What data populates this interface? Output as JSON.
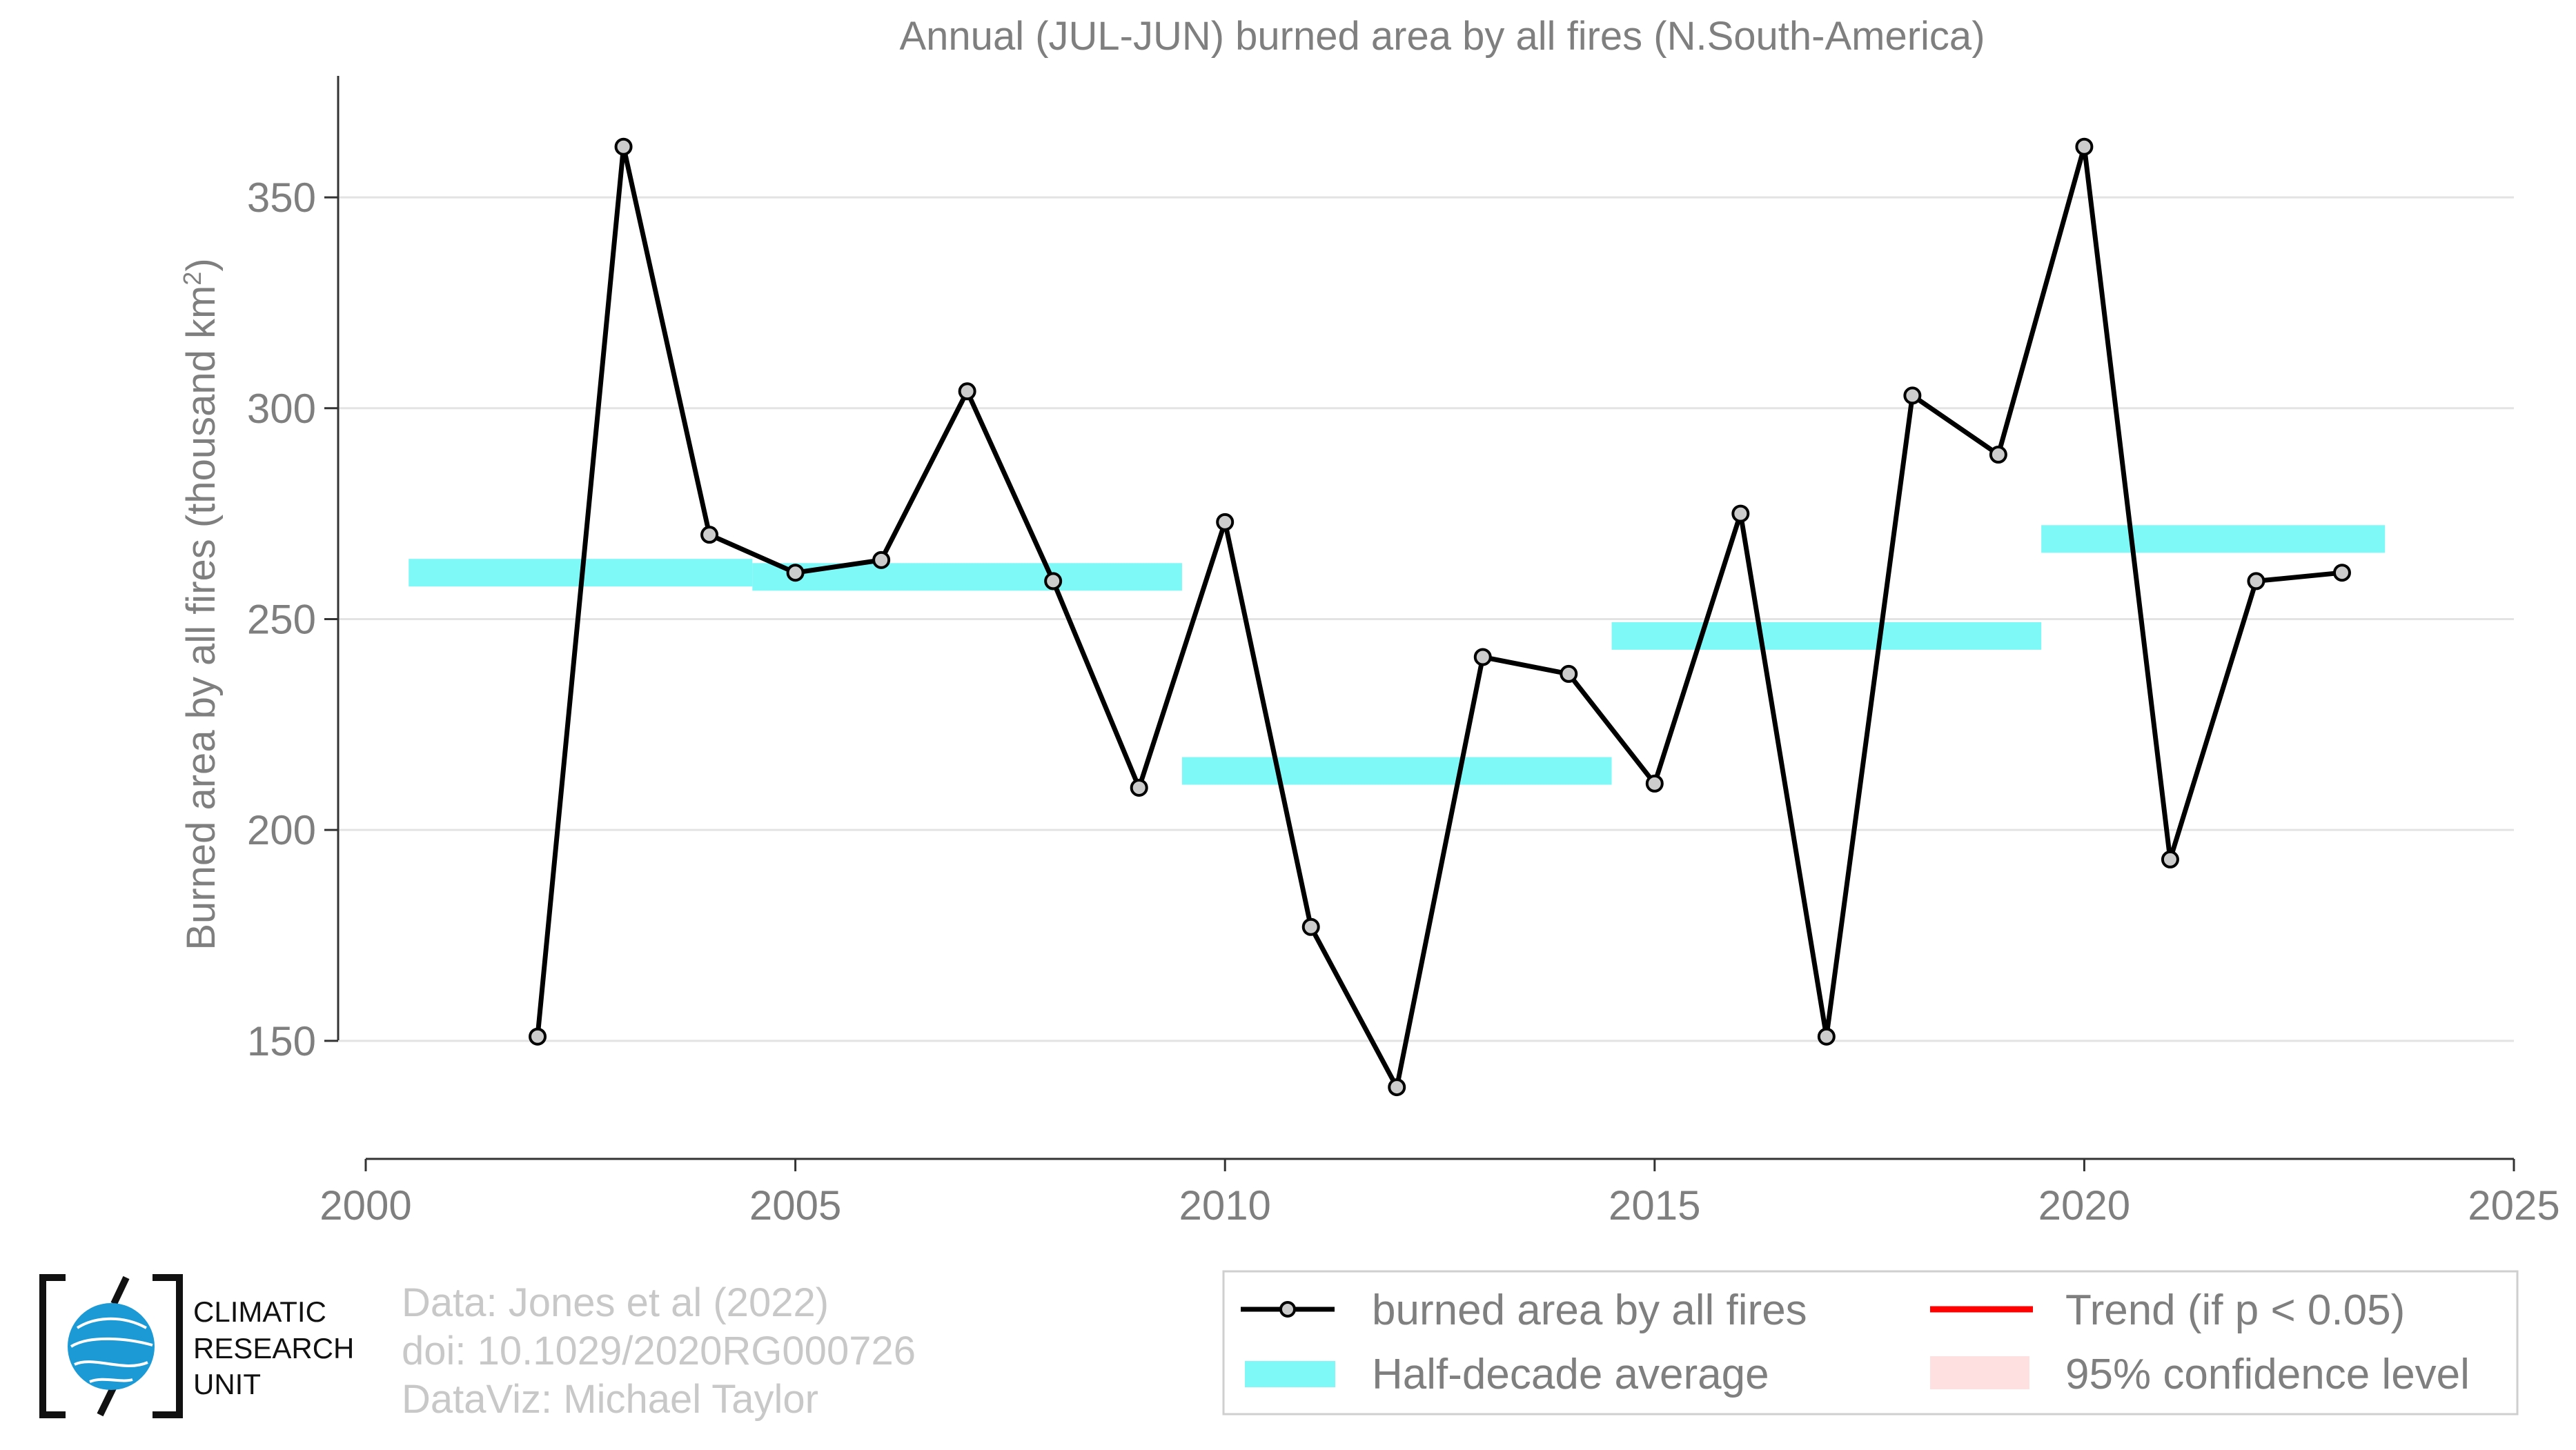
{
  "chart_data": {
    "type": "line",
    "title": "Annual (JUL-JUN) burned area by all fires (N.South-America)",
    "ylabel": "Burned area by all fires (thousand km²)",
    "xlabel": "",
    "xlim": [
      2000,
      2025
    ],
    "ylim": [
      122,
      377
    ],
    "x_ticks": [
      "2000",
      "2005",
      "2010",
      "2015",
      "2020",
      "2025"
    ],
    "y_ticks": [
      "150",
      "200",
      "250",
      "300",
      "350"
    ],
    "grid": "horizontal",
    "legend_position": "bottom-right",
    "series": [
      {
        "name": "burned area by all fires",
        "x": [
          2002,
          2003,
          2004,
          2005,
          2006,
          2007,
          2008,
          2009,
          2010,
          2011,
          2012,
          2013,
          2014,
          2015,
          2016,
          2017,
          2018,
          2019,
          2020,
          2021,
          2022,
          2023
        ],
        "values": [
          151,
          362,
          270,
          261,
          264,
          304,
          259,
          210,
          273,
          177,
          139,
          241,
          237,
          211,
          275,
          151,
          303,
          289,
          362,
          193,
          259,
          261
        ],
        "color": "#000000",
        "marker_fill": "#cccccc"
      }
    ],
    "half_decade_average": {
      "name": "Half-decade average",
      "color": "#7ff8f8",
      "segments": [
        {
          "x_start": 2000.5,
          "x_end": 2004.5,
          "value": 261
        },
        {
          "x_start": 2004.5,
          "x_end": 2009.5,
          "value": 260
        },
        {
          "x_start": 2009.5,
          "x_end": 2014.5,
          "value": 214
        },
        {
          "x_start": 2014.5,
          "x_end": 2019.5,
          "value": 246
        },
        {
          "x_start": 2019.5,
          "x_end": 2023.5,
          "value": 269
        }
      ]
    },
    "legend": [
      {
        "label": "burned area by all fires",
        "style": "line-marker",
        "color": "#000000"
      },
      {
        "label": "Trend (if p < 0.05)",
        "style": "line",
        "color": "#ff0000"
      },
      {
        "label": "Half-decade average",
        "style": "band",
        "color": "#7ff8f8"
      },
      {
        "label": "95% confidence level",
        "style": "band",
        "color": "#ffe0e0"
      }
    ]
  },
  "logo": {
    "lines": [
      "CLIMATIC",
      "RESEARCH",
      "UNIT"
    ],
    "globe_color": "#1b9ad6"
  },
  "credits": [
    "Data: Jones et al (2022)",
    "doi: 10.1029/2020RG000726",
    "DataViz: Michael Taylor"
  ]
}
